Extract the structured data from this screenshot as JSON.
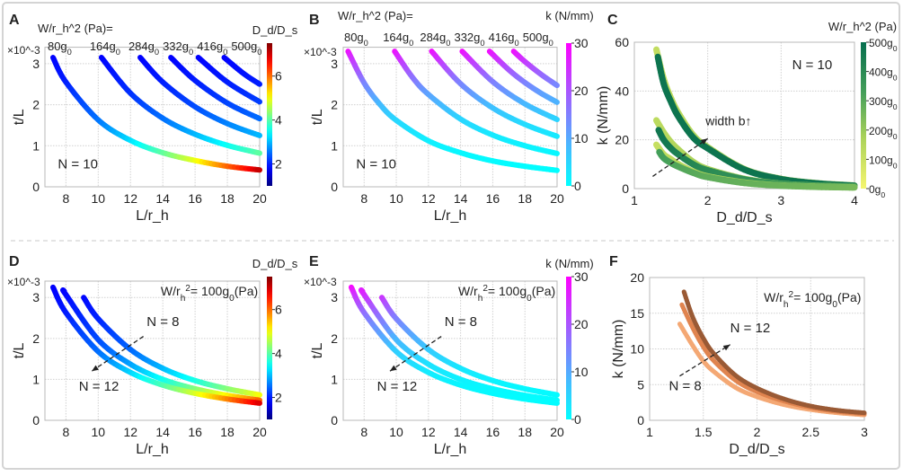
{
  "chart_data": [
    {
      "panel": "A",
      "type": "line",
      "xlabel": "L/r_h",
      "ylabel": "t/L",
      "y_multiplier": "×10^-3",
      "xlim": [
        6.7,
        20
      ],
      "ylim": [
        0,
        3.4
      ],
      "xticks": [
        8,
        10,
        12,
        14,
        16,
        18,
        20
      ],
      "yticks": [
        0,
        1,
        2,
        3
      ],
      "grid": true,
      "legend_title": "W/r_h^2 (Pa)=",
      "colorbar": {
        "label": "D_d/D_s",
        "colormap": "jet",
        "range": [
          1,
          7.5
        ],
        "ticks": [
          2,
          4,
          6
        ]
      },
      "annotations": [
        "N = 10"
      ],
      "series": [
        {
          "name": "80g_0",
          "x": [
            7.2,
            8,
            10,
            12,
            14,
            16,
            18,
            20
          ],
          "y": [
            3.15,
            2.55,
            1.63,
            1.13,
            0.83,
            0.64,
            0.5,
            0.41
          ],
          "c": [
            1.79,
            1.98,
            2.53,
            3.21,
            4.01,
            4.91,
            6.0,
            7.1
          ]
        },
        {
          "name": "164g_0",
          "x": [
            10.2,
            12,
            14,
            16,
            18,
            20
          ],
          "y": [
            3.15,
            2.28,
            1.67,
            1.28,
            1.01,
            0.82
          ],
          "c": [
            1.79,
            2.1,
            2.5,
            2.95,
            3.48,
            4.05
          ]
        },
        {
          "name": "284g_0",
          "x": [
            12.6,
            14,
            16,
            18,
            20
          ],
          "y": [
            3.15,
            2.55,
            1.95,
            1.54,
            1.25
          ],
          "c": [
            1.79,
            1.98,
            2.28,
            2.62,
            3.0
          ]
        },
        {
          "name": "332g_0",
          "x": [
            14.5,
            16,
            18,
            20
          ],
          "y": [
            3.15,
            2.59,
            2.04,
            1.66
          ],
          "c": [
            1.79,
            1.97,
            2.23,
            2.51
          ]
        },
        {
          "name": "416g_0",
          "x": [
            16.2,
            18,
            20
          ],
          "y": [
            3.15,
            2.55,
            2.07
          ],
          "c": [
            1.79,
            1.98,
            2.21
          ]
        },
        {
          "name": "500g_0",
          "x": [
            17.8,
            19,
            20
          ],
          "y": [
            3.15,
            2.76,
            2.5
          ],
          "c": [
            1.79,
            1.91,
            2.0
          ]
        }
      ]
    },
    {
      "panel": "B",
      "type": "line",
      "xlabel": "L/r_h",
      "ylabel": "t/L",
      "y_multiplier": "×10^-3",
      "xlim": [
        6.7,
        20
      ],
      "ylim": [
        0,
        3.4
      ],
      "xticks": [
        8,
        10,
        12,
        14,
        16,
        18,
        20
      ],
      "yticks": [
        0,
        1,
        2,
        3
      ],
      "grid": true,
      "legend_title": "W/r_h^2 (Pa)=",
      "colorbar": {
        "label": "k (N/mm)",
        "colormap": "cool",
        "range": [
          0,
          30
        ],
        "ticks": [
          0,
          10,
          20,
          30
        ]
      },
      "annotations": [
        "N = 10"
      ],
      "series": [
        {
          "name": "80g_0",
          "x": [
            7,
            8,
            9,
            10,
            12,
            14,
            16,
            18,
            20
          ],
          "y": [
            3.3,
            2.53,
            2.0,
            1.62,
            1.12,
            0.83,
            0.63,
            0.5,
            0.4
          ],
          "c": [
            29,
            14.9,
            8.3,
            4.9,
            1.9,
            0.9,
            0.5,
            0.3,
            0.1
          ]
        },
        {
          "name": "164g_0",
          "x": [
            9.9,
            11,
            12,
            14,
            16,
            18,
            20
          ],
          "y": [
            3.3,
            2.67,
            2.25,
            1.65,
            1.26,
            1.0,
            0.81
          ],
          "c": [
            29,
            17.1,
            11.1,
            5.1,
            2.6,
            1.5,
            0.9
          ]
        },
        {
          "name": "284g_0",
          "x": [
            12.2,
            14,
            16,
            18,
            20
          ],
          "y": [
            3.3,
            2.51,
            1.92,
            1.52,
            1.23
          ],
          "c": [
            29,
            14.6,
            7.4,
            4.2,
            2.5
          ]
        },
        {
          "name": "332g_0",
          "x": [
            14.1,
            16,
            18,
            20
          ],
          "y": [
            3.3,
            2.56,
            2.02,
            1.64
          ],
          "c": [
            29,
            15.4,
            8.5,
            5.0
          ]
        },
        {
          "name": "416g_0",
          "x": [
            15.8,
            17,
            18,
            19,
            20
          ],
          "y": [
            3.3,
            2.85,
            2.54,
            2.28,
            2.06
          ],
          "c": [
            29,
            20.1,
            15.1,
            11.5,
            8.9
          ]
        },
        {
          "name": "500g_0",
          "x": [
            17.3,
            18,
            19,
            20
          ],
          "y": [
            3.3,
            3.05,
            2.74,
            2.47
          ],
          "c": [
            29,
            23.8,
            18.2,
            14.0
          ]
        }
      ]
    },
    {
      "panel": "C",
      "type": "line",
      "xlabel": "D_d/D_s",
      "ylabel": "k (N/mm)",
      "xlim": [
        1,
        4
      ],
      "ylim": [
        0,
        60
      ],
      "xticks": [
        1,
        2,
        3,
        4
      ],
      "yticks": [
        0,
        20,
        40,
        60
      ],
      "grid": true,
      "colorbar": {
        "label": "W/r_h^2 (Pa)",
        "colormap": "yellow-green",
        "range": [
          0,
          500
        ],
        "ticks": [
          0,
          100,
          200,
          300,
          400,
          500
        ],
        "tick_labels": [
          "0g_0",
          "100g_0",
          "200g_0",
          "300g_0",
          "400g_0",
          "500g_0"
        ]
      },
      "annotations": [
        "N = 10",
        "width b↑"
      ],
      "series": [
        {
          "x": [
            1.3,
            1.4,
            1.5,
            1.6,
            1.8,
            2,
            2.5,
            3,
            3.5,
            4
          ],
          "y": [
            57,
            45,
            37,
            31,
            22,
            17,
            8,
            4,
            2.2,
            1.3
          ],
          "c": [
            120,
            120,
            130,
            140,
            150,
            160,
            170,
            180,
            190,
            200
          ]
        },
        {
          "x": [
            1.32,
            1.4,
            1.5,
            1.6,
            1.8,
            2,
            2.5,
            3,
            3.5,
            4
          ],
          "y": [
            54,
            43,
            35.5,
            29.5,
            21,
            16.5,
            7.8,
            3.9,
            2.1,
            1.2
          ],
          "c": [
            480,
            480,
            480,
            480,
            480,
            480,
            480,
            480,
            480,
            480
          ]
        },
        {
          "x": [
            1.3,
            1.4,
            1.5,
            1.6,
            1.8,
            2,
            2.5,
            3,
            3.5,
            4
          ],
          "y": [
            28,
            23,
            19,
            16,
            11,
            8,
            4,
            2,
            1.2,
            0.8
          ],
          "c": [
            130,
            140,
            150,
            160,
            170,
            180,
            190,
            200,
            210,
            220
          ]
        },
        {
          "x": [
            1.33,
            1.4,
            1.5,
            1.6,
            1.8,
            2,
            2.5,
            3,
            3.5,
            4
          ],
          "y": [
            24,
            20,
            16.5,
            14,
            10,
            7.5,
            3.8,
            1.9,
            1.1,
            0.7
          ],
          "c": [
            470,
            470,
            460,
            440,
            420,
            400,
            380,
            360,
            340,
            320
          ]
        },
        {
          "x": [
            1.3,
            1.4,
            1.5,
            1.6,
            1.8,
            2,
            2.5,
            3,
            3.5,
            4
          ],
          "y": [
            18,
            14,
            12,
            10,
            7,
            5,
            2.5,
            1.3,
            0.8,
            0.5
          ],
          "c": [
            110,
            120,
            130,
            140,
            150,
            160,
            170,
            180,
            190,
            200
          ]
        },
        {
          "x": [
            1.34,
            1.4,
            1.5,
            1.6,
            1.8,
            2,
            2.5,
            3,
            3.5,
            4
          ],
          "y": [
            15,
            12.5,
            10.5,
            9,
            6.5,
            4.7,
            2.3,
            1.2,
            0.7,
            0.45
          ],
          "c": [
            330,
            330,
            320,
            310,
            300,
            290,
            280,
            270,
            260,
            250
          ]
        }
      ]
    },
    {
      "panel": "D",
      "type": "line",
      "xlabel": "L/r_h",
      "ylabel": "t/L",
      "y_multiplier": "×10^-3",
      "xlim": [
        6.7,
        20
      ],
      "ylim": [
        0,
        3.4
      ],
      "xticks": [
        8,
        10,
        12,
        14,
        16,
        18,
        20
      ],
      "yticks": [
        0,
        1,
        2,
        3
      ],
      "grid": true,
      "colorbar": {
        "label": "D_d/D_s",
        "colormap": "jet",
        "range": [
          1,
          7.5
        ],
        "ticks": [
          2,
          4,
          6
        ]
      },
      "annotations": [
        "W/r_h^2= 100g_0(Pa)",
        "N = 8",
        "N = 12"
      ],
      "series": [
        {
          "x": [
            9.1,
            10,
            12,
            14,
            16,
            18,
            20
          ],
          "y": [
            3.0,
            2.48,
            1.73,
            1.27,
            0.97,
            0.77,
            0.62
          ],
          "c": [
            1.83,
            2.01,
            2.45,
            2.97,
            3.58,
            4.25,
            5.03
          ]
        },
        {
          "x": [
            7.9,
            8,
            10,
            12,
            14,
            16,
            18,
            20
          ],
          "y": [
            3.15,
            3.07,
            1.97,
            1.37,
            1.0,
            0.77,
            0.61,
            0.49
          ],
          "c": [
            1.79,
            1.81,
            2.27,
            2.82,
            3.5,
            4.25,
            5.1,
            6.1
          ]
        },
        {
          "x": [
            7.2,
            8,
            10,
            12,
            14,
            16,
            18,
            20
          ],
          "y": [
            3.25,
            2.63,
            1.68,
            1.17,
            0.86,
            0.66,
            0.52,
            0.42
          ],
          "c": [
            1.77,
            1.95,
            2.49,
            3.14,
            3.91,
            4.79,
            5.81,
            6.95
          ]
        }
      ]
    },
    {
      "panel": "E",
      "type": "line",
      "xlabel": "L/r_h",
      "ylabel": "t/L",
      "y_multiplier": "×10^-3",
      "xlim": [
        6.7,
        20
      ],
      "ylim": [
        0,
        3.4
      ],
      "xticks": [
        8,
        10,
        12,
        14,
        16,
        18,
        20
      ],
      "yticks": [
        0,
        1,
        2,
        3
      ],
      "grid": true,
      "colorbar": {
        "label": "k (N/mm)",
        "colormap": "cool",
        "range": [
          0,
          30
        ],
        "ticks": [
          0,
          10,
          20,
          30
        ]
      },
      "annotations": [
        "W/r_h^2= 100g_0(Pa)",
        "N = 8",
        "N = 12"
      ],
      "series": [
        {
          "x": [
            9.1,
            10,
            12,
            14,
            16,
            18,
            20
          ],
          "y": [
            3.0,
            2.48,
            1.73,
            1.27,
            0.97,
            0.77,
            0.62
          ],
          "c": [
            24.6,
            15.3,
            6.3,
            2.9,
            1.4,
            0.8,
            0.5
          ]
        },
        {
          "x": [
            7.9,
            8,
            10,
            12,
            14,
            16,
            18,
            20
          ],
          "y": [
            3.15,
            3.07,
            1.97,
            1.37,
            1.0,
            0.77,
            0.61,
            0.49
          ],
          "c": [
            27.7,
            26,
            8.6,
            3.5,
            1.6,
            0.8,
            0.5,
            0.3
          ]
        },
        {
          "x": [
            7.2,
            8,
            10,
            12,
            14,
            16,
            18,
            20
          ],
          "y": [
            3.25,
            2.63,
            1.68,
            1.17,
            0.86,
            0.66,
            0.52,
            0.42
          ],
          "c": [
            30,
            17.7,
            5.8,
            2.3,
            1.1,
            0.6,
            0.3,
            0.2
          ]
        }
      ]
    },
    {
      "panel": "F",
      "type": "line",
      "xlabel": "D_d/D_s",
      "ylabel": "k (N/mm)",
      "xlim": [
        1,
        3
      ],
      "ylim": [
        0,
        20
      ],
      "xticks": [
        1,
        1.5,
        2,
        2.5,
        3
      ],
      "yticks": [
        0,
        5,
        10,
        15,
        20
      ],
      "grid": true,
      "annotations": [
        "W/r_h^2= 100g_0(Pa)",
        "N = 12",
        "N = 8"
      ],
      "series": [
        {
          "color": "#f4a874",
          "x": [
            1.28,
            1.4,
            1.5,
            1.6,
            1.8,
            2,
            2.25,
            2.5,
            2.75,
            3
          ],
          "y": [
            13.5,
            10.5,
            8.3,
            6.8,
            4.6,
            3.3,
            2.2,
            1.5,
            1.05,
            0.75
          ]
        },
        {
          "color": "#e0844f",
          "x": [
            1.3,
            1.4,
            1.5,
            1.6,
            1.8,
            2,
            2.25,
            2.5,
            2.75,
            3
          ],
          "y": [
            16.2,
            13,
            10.3,
            8.3,
            5.6,
            4.0,
            2.7,
            1.8,
            1.25,
            0.9
          ]
        },
        {
          "color": "#9a5a35",
          "x": [
            1.32,
            1.4,
            1.5,
            1.6,
            1.8,
            2,
            2.25,
            2.5,
            2.75,
            3
          ],
          "y": [
            18,
            14.5,
            11.5,
            9.3,
            6.3,
            4.5,
            3.0,
            2.0,
            1.4,
            1.05
          ]
        }
      ]
    }
  ]
}
